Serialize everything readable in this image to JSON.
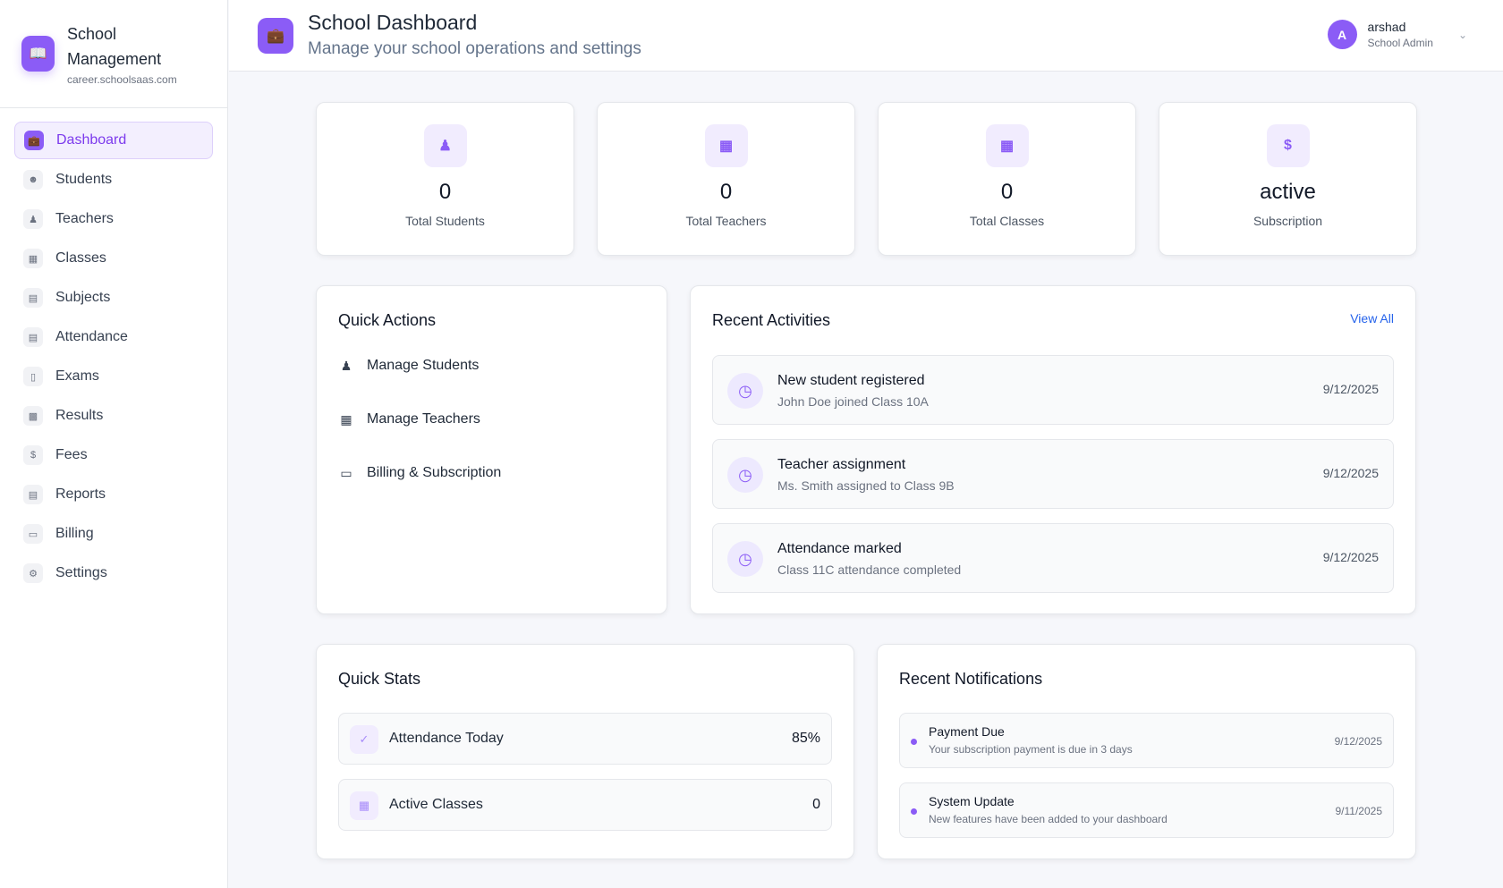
{
  "brand": {
    "title": "School Management",
    "subtitle": "career.schoolsaas.com"
  },
  "sidebar": {
    "items": [
      {
        "label": "Dashboard",
        "icon": "briefcase-icon",
        "active": true
      },
      {
        "label": "Students",
        "icon": "students-icon"
      },
      {
        "label": "Teachers",
        "icon": "user-icon"
      },
      {
        "label": "Classes",
        "icon": "building-icon"
      },
      {
        "label": "Subjects",
        "icon": "book-icon"
      },
      {
        "label": "Attendance",
        "icon": "document-icon"
      },
      {
        "label": "Exams",
        "icon": "clipboard-icon"
      },
      {
        "label": "Results",
        "icon": "bar-chart-icon"
      },
      {
        "label": "Fees",
        "icon": "dollar-icon"
      },
      {
        "label": "Reports",
        "icon": "report-icon"
      },
      {
        "label": "Billing",
        "icon": "credit-card-icon"
      },
      {
        "label": "Settings",
        "icon": "gear-icon"
      }
    ]
  },
  "header": {
    "title": "School Dashboard",
    "subtitle": "Manage your school operations and settings"
  },
  "user": {
    "initial": "A",
    "name": "arshad",
    "role": "School Admin"
  },
  "stats": [
    {
      "value": "0",
      "label": "Total Students",
      "icon": "user-icon"
    },
    {
      "value": "0",
      "label": "Total Teachers",
      "icon": "building-icon"
    },
    {
      "value": "0",
      "label": "Total Classes",
      "icon": "building-icon"
    },
    {
      "value": "active",
      "label": "Subscription",
      "icon": "dollar-icon"
    }
  ],
  "quick_actions": {
    "title": "Quick Actions",
    "items": [
      {
        "label": "Manage Students",
        "icon": "user-icon"
      },
      {
        "label": "Manage Teachers",
        "icon": "building-icon"
      },
      {
        "label": "Billing & Subscription",
        "icon": "credit-card-icon"
      }
    ]
  },
  "recent_activities": {
    "title": "Recent Activities",
    "view_all": "View All",
    "items": [
      {
        "title": "New student registered",
        "desc": "John Doe joined Class 10A",
        "date": "9/12/2025"
      },
      {
        "title": "Teacher assignment",
        "desc": "Ms. Smith assigned to Class 9B",
        "date": "9/12/2025"
      },
      {
        "title": "Attendance marked",
        "desc": "Class 11C attendance completed",
        "date": "9/12/2025"
      }
    ]
  },
  "quick_stats": {
    "title": "Quick Stats",
    "items": [
      {
        "label": "Attendance Today",
        "value": "85%"
      },
      {
        "label": "Active Classes",
        "value": "0"
      }
    ]
  },
  "notifications": {
    "title": "Recent Notifications",
    "items": [
      {
        "title": "Payment Due",
        "desc": "Your subscription payment is due in 3 days",
        "date": "9/12/2025"
      },
      {
        "title": "System Update",
        "desc": "New features have been added to your dashboard",
        "date": "9/11/2025"
      }
    ]
  },
  "colors": {
    "accent": "#8b5cf6",
    "link": "#2563eb"
  }
}
